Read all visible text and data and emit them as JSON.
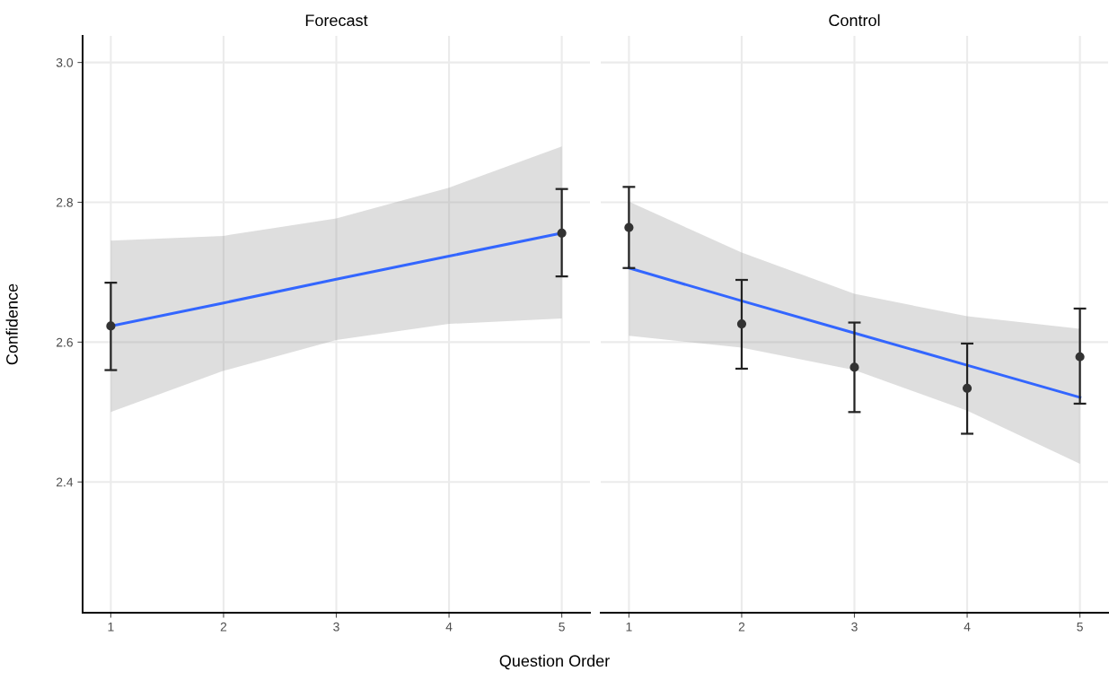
{
  "chart_data": [
    {
      "type": "scatter",
      "title": "Forecast",
      "xlabel": "Question Order",
      "ylabel": "Confidence",
      "xlim": [
        0.75,
        5.25
      ],
      "xticks": [
        1,
        2,
        3,
        4,
        5
      ],
      "ylim": [
        2.213,
        3.038
      ],
      "yticks": [
        2.4,
        2.6,
        2.8,
        {
          "value": 3.0,
          "label": "3.0"
        }
      ],
      "grid": true,
      "series": [
        {
          "type": "line",
          "color": "#3366ff",
          "x": [
            1,
            2,
            3,
            4,
            5
          ],
          "values": [
            2.623,
            2.656,
            2.69,
            2.723,
            2.756
          ],
          "lower": [
            2.5,
            2.559,
            2.603,
            2.626,
            2.634
          ],
          "upper": [
            2.745,
            2.752,
            2.777,
            2.821,
            2.88
          ]
        },
        {
          "color": "#333333",
          "marker": "circle",
          "x": [
            1,
            5
          ],
          "values": [
            2.623,
            2.756
          ],
          "errors": [
            [
              2.56,
              2.685
            ],
            [
              2.694,
              2.819
            ]
          ]
        }
      ]
    },
    {
      "type": "scatter",
      "title": "Control",
      "xlim": [
        0.75,
        5.25
      ],
      "xticks": [
        1,
        2,
        3,
        4,
        5
      ],
      "ylim": [
        2.213,
        3.038
      ],
      "yticks": [
        2.4,
        2.6,
        2.8,
        3.0
      ],
      "grid": true,
      "tick_labels": "x",
      "series": [
        {
          "type": "line",
          "color": "#3366ff",
          "x": [
            1,
            2,
            3,
            4,
            5
          ],
          "values": [
            2.706,
            2.659,
            2.613,
            2.567,
            2.521
          ],
          "lower": [
            2.609,
            2.592,
            2.56,
            2.502,
            2.426
          ],
          "upper": [
            2.801,
            2.728,
            2.669,
            2.637,
            2.619
          ]
        },
        {
          "color": "#333333",
          "marker": "circle",
          "x": [
            1,
            2,
            3,
            4,
            5
          ],
          "values": [
            2.764,
            2.626,
            2.564,
            2.534,
            2.579
          ],
          "errors": [
            [
              2.706,
              2.822
            ],
            [
              2.562,
              2.689
            ],
            [
              2.5,
              2.628
            ],
            [
              2.469,
              2.598
            ],
            [
              2.512,
              2.648
            ]
          ]
        }
      ]
    }
  ]
}
